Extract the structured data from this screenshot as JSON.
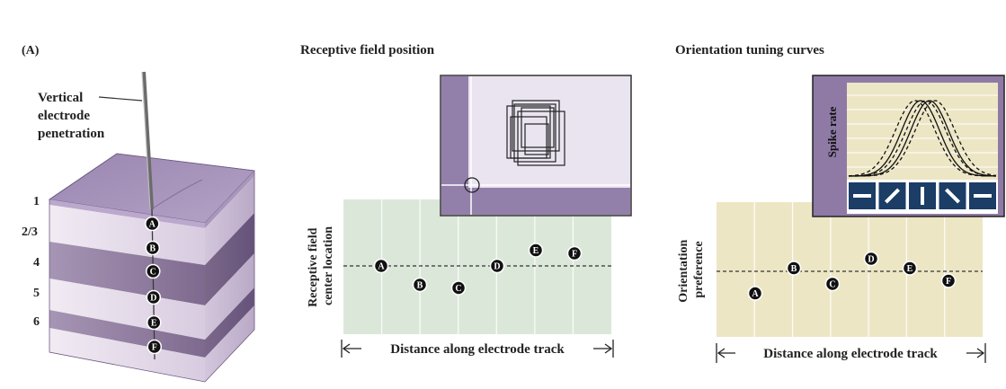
{
  "panel_label": "(A)",
  "cube": {
    "electrode_label": [
      "Vertical",
      "electrode",
      "penetration"
    ],
    "layers": [
      "1",
      "2/3",
      "4",
      "5",
      "6"
    ],
    "sites": [
      "A",
      "B",
      "C",
      "D",
      "E",
      "F"
    ]
  },
  "receptive": {
    "title": "Receptive field position",
    "ylabel": [
      "Receptive field",
      "center location"
    ],
    "xlabel": "Distance along electrode track",
    "points": [
      {
        "site": "A",
        "value": 0.0
      },
      {
        "site": "B",
        "value": -0.6
      },
      {
        "site": "C",
        "value": -0.7
      },
      {
        "site": "D",
        "value": 0.0
      },
      {
        "site": "E",
        "value": 0.5
      },
      {
        "site": "F",
        "value": 0.4
      }
    ]
  },
  "orientation": {
    "title": "Orientation tuning curves",
    "ylabel": [
      "Orientation",
      "preference"
    ],
    "xlabel": "Distance along electrode track",
    "inset_ylabel": "Spike rate",
    "inset_bars": [
      "horizontal",
      "oblique-right",
      "vertical",
      "oblique-left",
      "horizontal"
    ],
    "points": [
      {
        "site": "A",
        "value": -0.7
      },
      {
        "site": "B",
        "value": 0.1
      },
      {
        "site": "C",
        "value": -0.4
      },
      {
        "site": "D",
        "value": 0.4
      },
      {
        "site": "E",
        "value": 0.1
      },
      {
        "site": "F",
        "value": -0.3
      }
    ]
  },
  "colors": {
    "cube_top": "#8f7aa6",
    "cube_light": "#e6dcec",
    "cube_dark": "#8e7a9c",
    "chart1_bg": "#dbe8d9",
    "chart2_bg": "#ede6c5",
    "inset_purple": "#8f7aa6",
    "inset_bar": "#1b3d66"
  }
}
